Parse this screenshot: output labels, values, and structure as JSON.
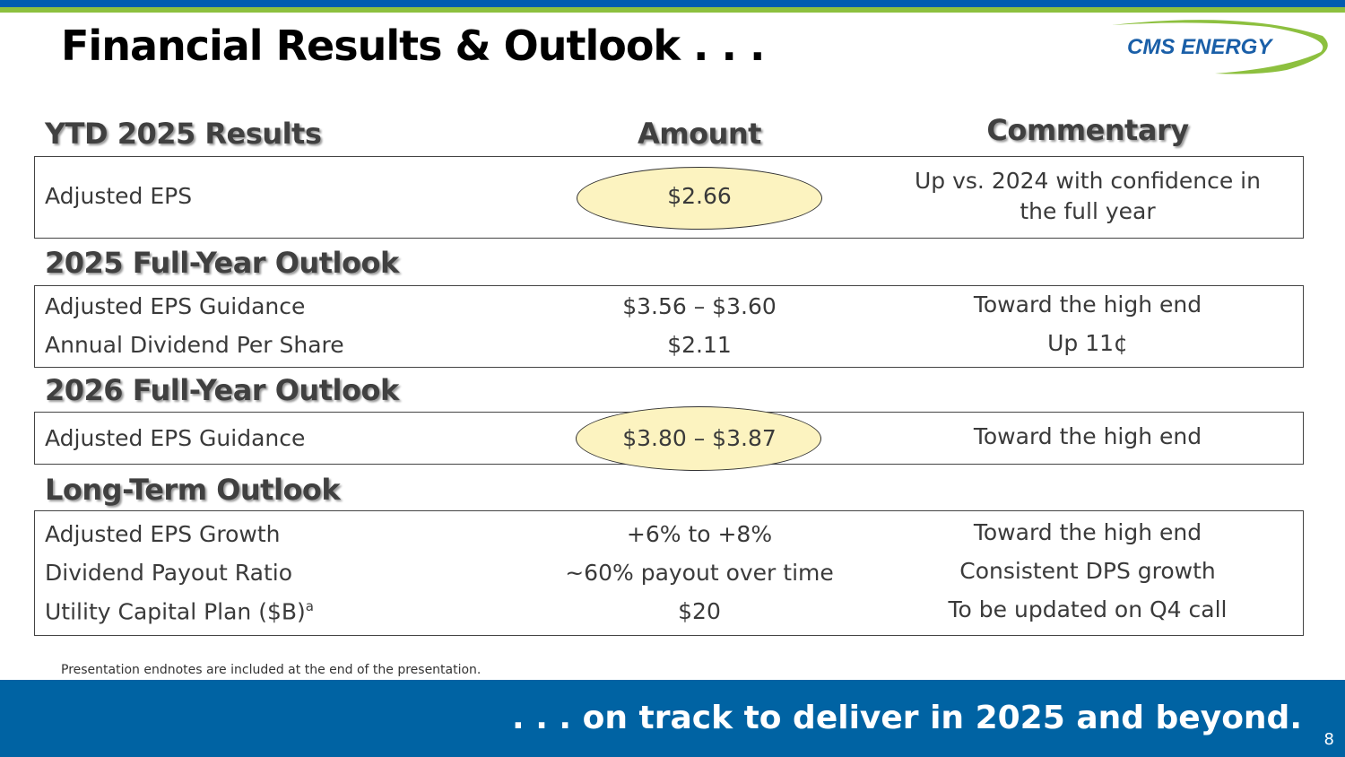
{
  "title": "Financial Results & Outlook . . .",
  "logo": {
    "text": "CMS ENERGY",
    "colors": {
      "text": "#1a5fa8",
      "swoosh": "#8dc03f"
    }
  },
  "columns": {
    "results": "YTD 2025 Results",
    "amount": "Amount",
    "commentary": "Commentary"
  },
  "sections": [
    {
      "title": "YTD 2025 Results",
      "rows": [
        {
          "label": "Adjusted EPS",
          "amount": "$2.66",
          "commentary": "Up vs. 2024 with confidence in the full year",
          "highlighted": true
        }
      ]
    },
    {
      "title": "2025 Full-Year Outlook",
      "rows": [
        {
          "label": "Adjusted EPS Guidance",
          "amount": "$3.56 – $3.60",
          "commentary": "Toward the high end"
        },
        {
          "label": "Annual Dividend Per Share",
          "amount": "$2.11",
          "commentary": "Up 11¢"
        }
      ]
    },
    {
      "title": "2026 Full-Year Outlook",
      "rows": [
        {
          "label": "Adjusted EPS Guidance",
          "amount": "$3.80 – $3.87",
          "commentary": "Toward the high end",
          "highlighted": true
        }
      ]
    },
    {
      "title": "Long-Term Outlook",
      "rows": [
        {
          "label": "Adjusted EPS Growth",
          "amount": "+6% to +8%",
          "commentary": "Toward the high end"
        },
        {
          "label": "Dividend Payout Ratio",
          "amount": "~60% payout over time",
          "commentary": "Consistent DPS growth"
        },
        {
          "label": "Utility Capital Plan ($B)",
          "sup": "a",
          "amount": "$20",
          "commentary": "To be updated on Q4 call"
        }
      ]
    }
  ],
  "endnote": "Presentation endnotes are included at the end of the presentation.",
  "tagline": ". . . on track to deliver in 2025 and beyond.",
  "page_number": "8",
  "colors": {
    "brand_blue": "#0063a3",
    "brand_green": "#8dc03f",
    "highlight": "#fcf3c0"
  }
}
